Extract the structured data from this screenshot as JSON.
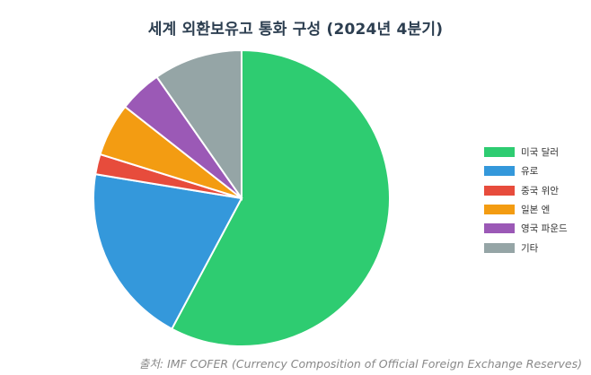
{
  "chart_data": {
    "type": "pie",
    "title": "세계 외환보유고 통화 구성 (2024년 4분기)",
    "categories": [
      "미국 달러",
      "유로",
      "중국 위안",
      "일본 엔",
      "영국 파운드",
      "기타"
    ],
    "values": [
      57.8,
      19.8,
      2.2,
      5.8,
      4.7,
      9.7
    ],
    "colors": [
      "#2ecc71",
      "#3498db",
      "#e74c3c",
      "#f39c12",
      "#9b59b6",
      "#95a5a6"
    ],
    "legend_position": "right"
  },
  "source_note": "출처: IMF COFER (Currency Composition of Official Foreign Exchange Reserves)"
}
